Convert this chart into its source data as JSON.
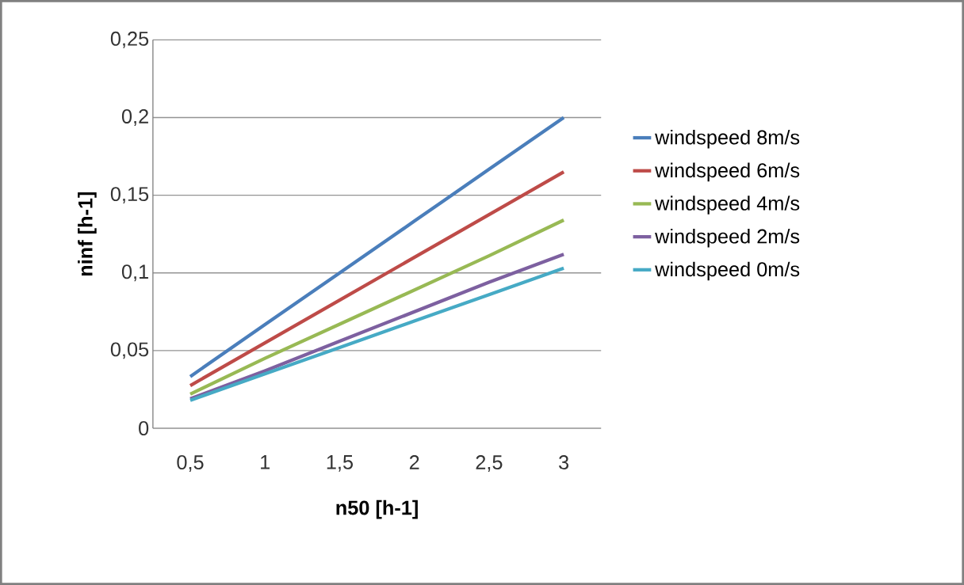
{
  "chart_data": {
    "type": "line",
    "xlabel": "n50 [h-1]",
    "ylabel": "ninf [h-1]",
    "categories": [
      "0,5",
      "1",
      "1,5",
      "2",
      "2,5",
      "3"
    ],
    "series": [
      {
        "name": "windspeed 8m/s",
        "color": "#4a7ebb",
        "values": [
          0.0333,
          0.0667,
          0.1,
          0.1333,
          0.1667,
          0.2
        ]
      },
      {
        "name": "windspeed 6m/s",
        "color": "#be4b48",
        "values": [
          0.0275,
          0.055,
          0.0825,
          0.11,
          0.1375,
          0.165
        ]
      },
      {
        "name": "windspeed 4m/s",
        "color": "#98b954",
        "values": [
          0.022,
          0.045,
          0.067,
          0.089,
          0.111,
          0.134
        ]
      },
      {
        "name": "windspeed 2m/s",
        "color": "#7d60a0",
        "values": [
          0.019,
          0.037,
          0.056,
          0.075,
          0.094,
          0.112
        ]
      },
      {
        "name": "windspeed 0m/s",
        "color": "#46aac5",
        "values": [
          0.018,
          0.035,
          0.052,
          0.069,
          0.086,
          0.103
        ]
      }
    ],
    "ylim": [
      0,
      0.25
    ],
    "yticks": [
      0,
      {
        "value": 0.05,
        "label": "0,05"
      },
      {
        "value": 0.1,
        "label": "0,1"
      },
      {
        "value": 0.15,
        "label": "0,15"
      },
      {
        "value": 0.2,
        "label": "0,2"
      },
      {
        "value": 0.25,
        "label": "0,25"
      }
    ],
    "grid": "y",
    "legend": "right",
    "marker": "none",
    "line_style": "solid"
  }
}
